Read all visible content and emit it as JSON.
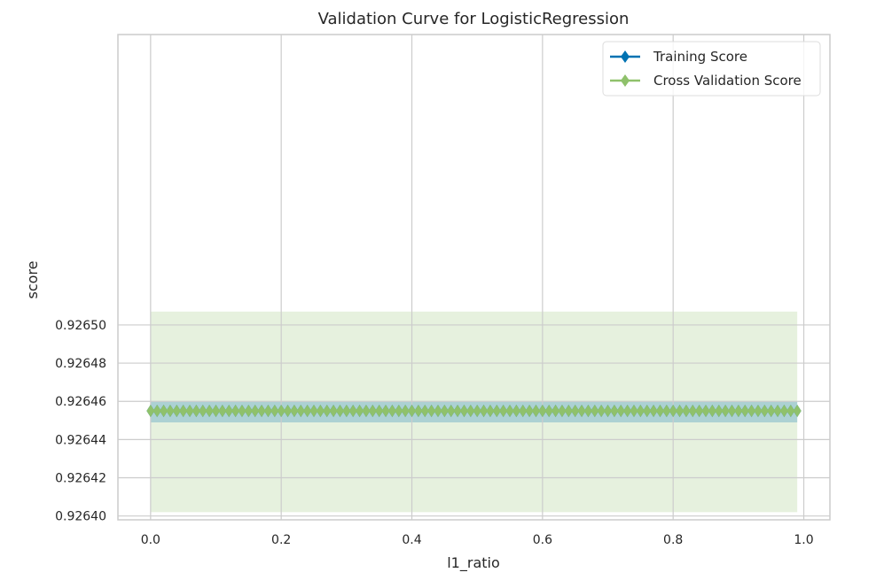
{
  "chart_data": {
    "type": "line",
    "title": "Validation Curve for LogisticRegression",
    "xlabel": "l1_ratio",
    "ylabel": "score",
    "xlim": [
      -0.05,
      1.04
    ],
    "ylim": [
      0.926398,
      0.926652
    ],
    "xticks": [
      0.0,
      0.2,
      0.4,
      0.6,
      0.8,
      1.0
    ],
    "xtick_labels": [
      "0.0",
      "0.2",
      "0.4",
      "0.6",
      "0.8",
      "1.0"
    ],
    "yticks": [
      0.9264,
      0.92642,
      0.92644,
      0.92646,
      0.92648,
      0.9265
    ],
    "ytick_labels": [
      "0.92640",
      "0.92642",
      "0.92644",
      "0.92646",
      "0.92648",
      "0.92650"
    ],
    "grid": true,
    "legend_position": "top-right",
    "x": {
      "start": 0.0,
      "stop": 0.99,
      "step": 0.01
    },
    "series": [
      {
        "name": "Training Score",
        "color": "#0072B2",
        "value": 0.926455,
        "band": [
          0.926449,
          0.92646
        ]
      },
      {
        "name": "Cross Validation Score",
        "color": "#8FC16B",
        "value": 0.926455,
        "band": [
          0.926402,
          0.926507
        ]
      }
    ]
  }
}
